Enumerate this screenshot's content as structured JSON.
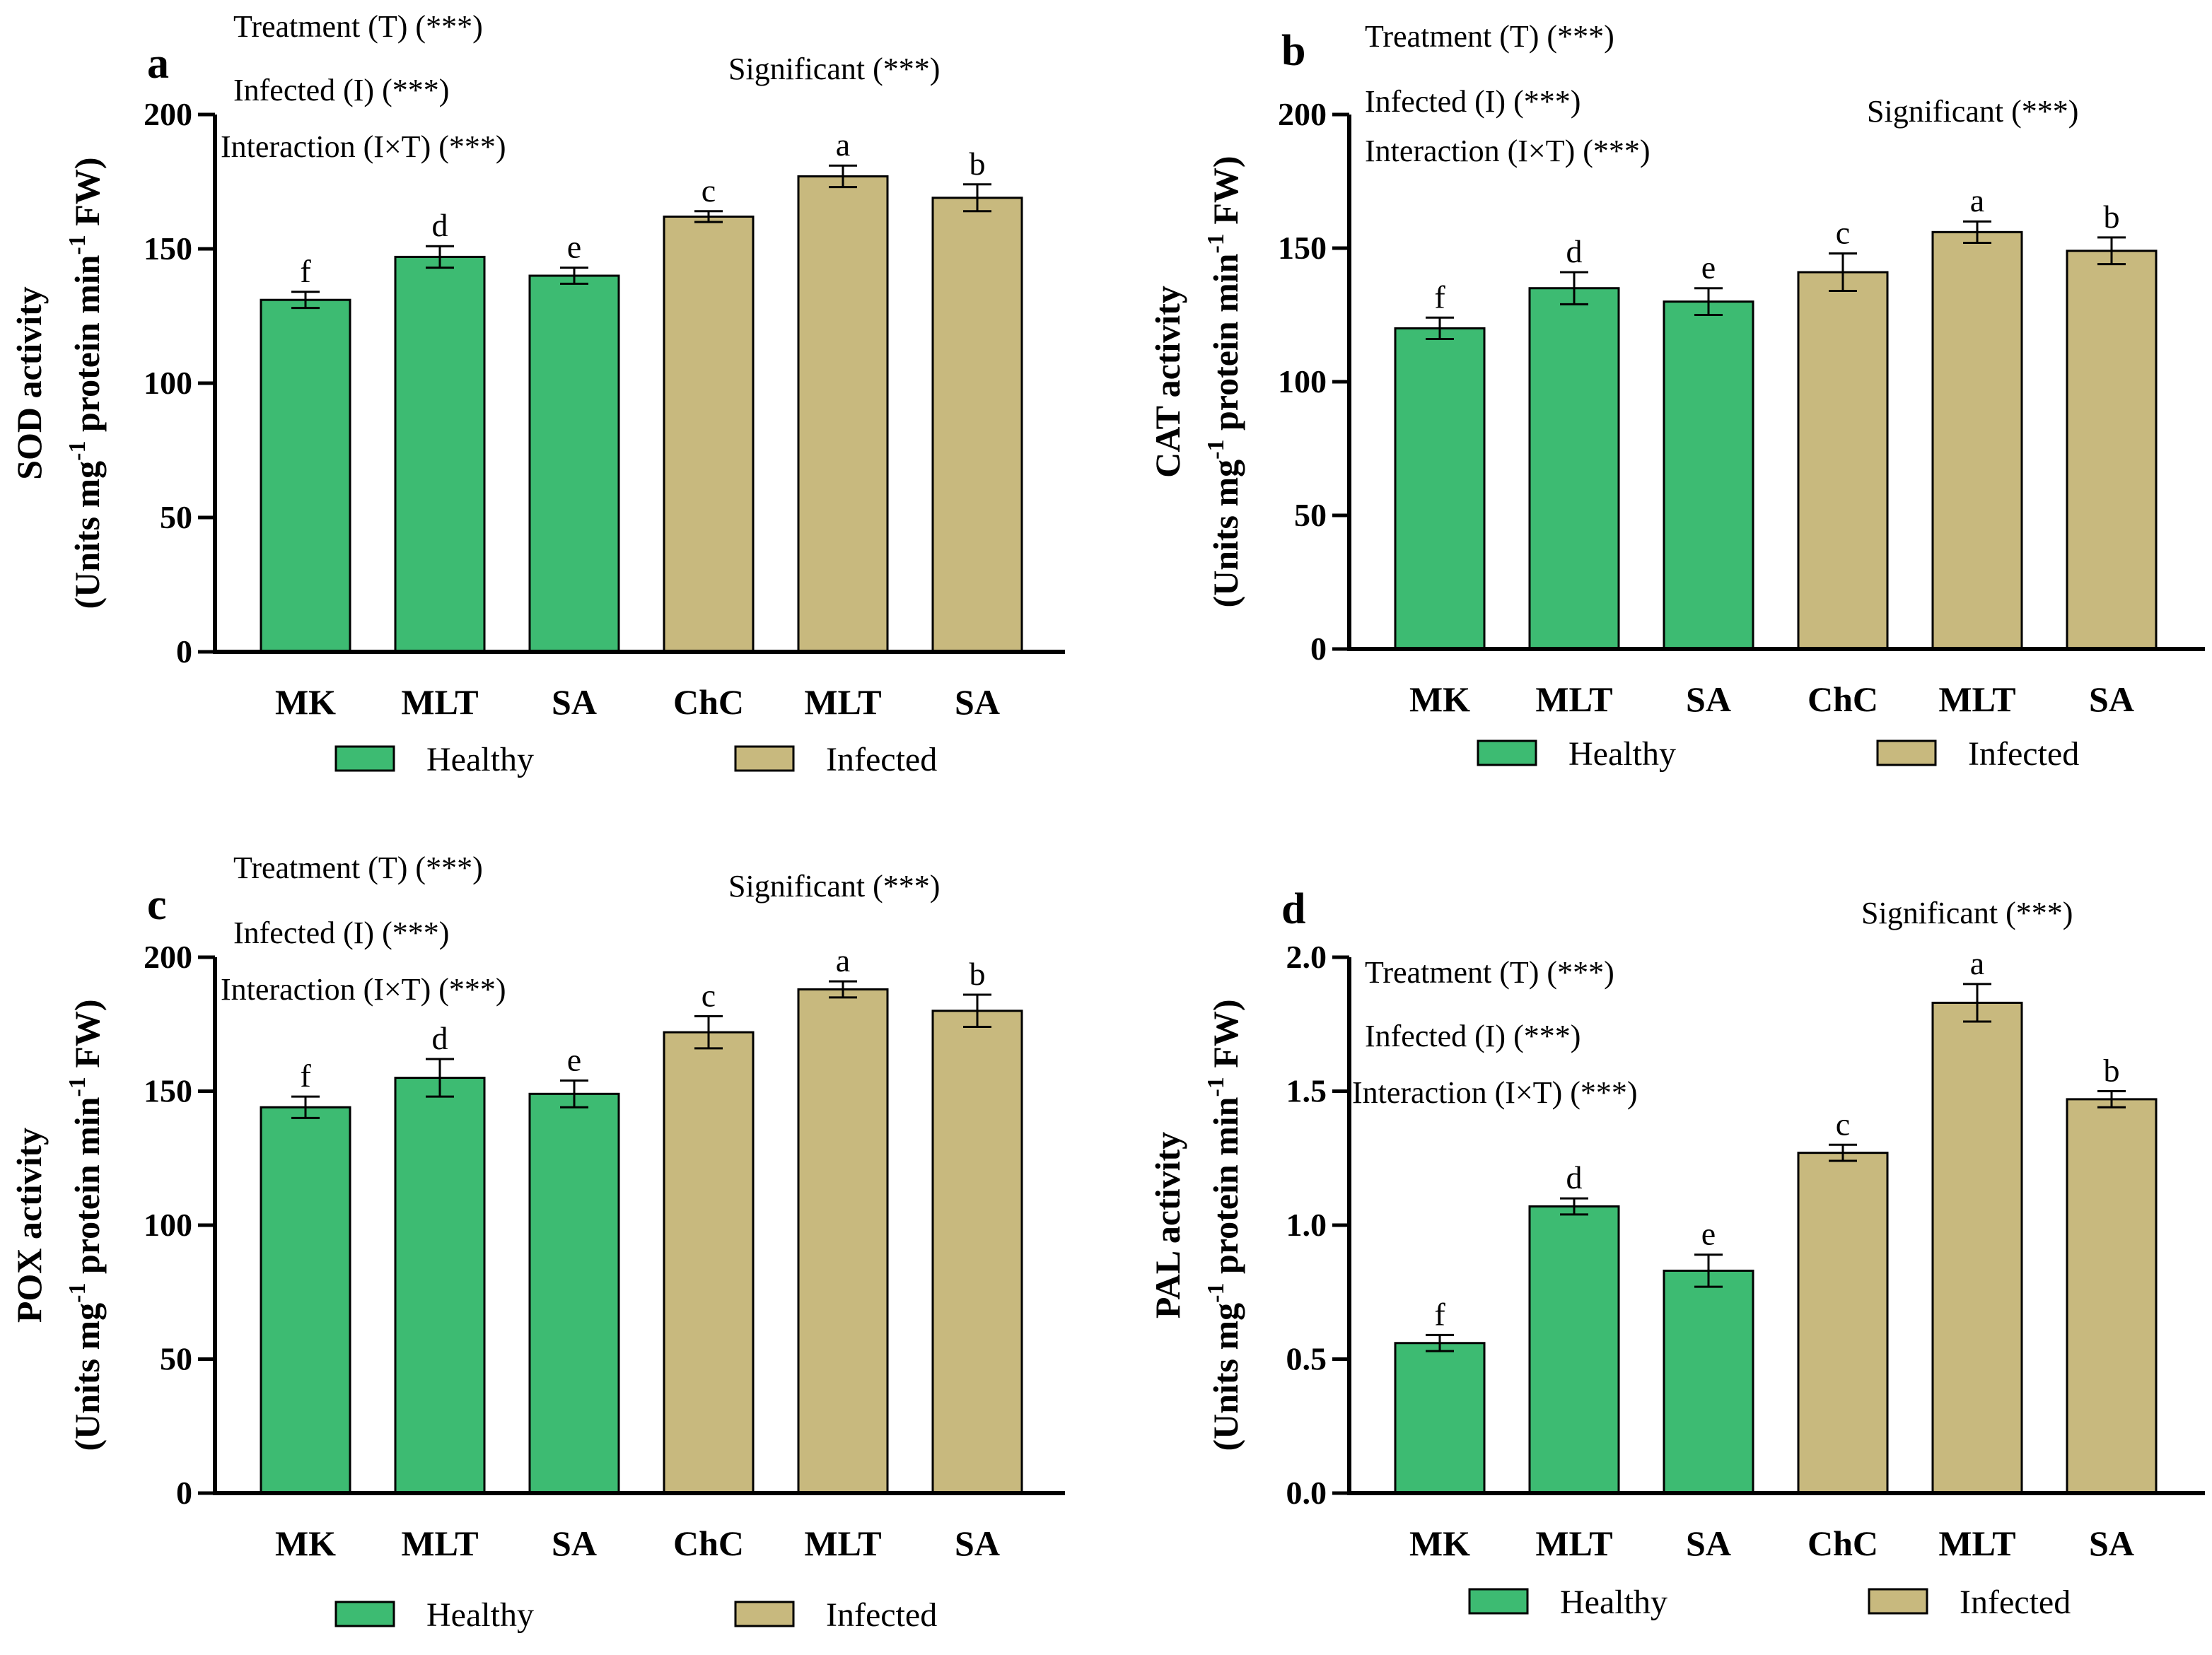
{
  "colors": {
    "healthy": "#3DBB72",
    "infected": "#C8B97E",
    "axis": "#000000"
  },
  "chart_data": [
    {
      "panel": "a",
      "type": "bar",
      "ylabel_line1": "SOD activity",
      "ylabel_line2_pre": "(Units mg",
      "ylabel_line2_sup1": "-1",
      "ylabel_line2_mid": " protein min",
      "ylabel_line2_sup2": "-1",
      "ylabel_line2_post": " FW)",
      "ylim": [
        0,
        200
      ],
      "yticks": [
        0,
        50,
        100,
        150,
        200
      ],
      "ytick_labels": [
        "0",
        "50",
        "100",
        "150",
        "200"
      ],
      "categories": [
        "MK",
        "MLT",
        "SA",
        "ChC",
        "MLT",
        "SA"
      ],
      "groups": [
        "healthy",
        "healthy",
        "healthy",
        "infected",
        "infected",
        "infected"
      ],
      "values": [
        131,
        147,
        140,
        162,
        177,
        169
      ],
      "errors": [
        3,
        4,
        3,
        2,
        4,
        5
      ],
      "letters": [
        "f",
        "d",
        "e",
        "c",
        "a",
        "b"
      ],
      "annotations": [
        "Treatment (T) (***)",
        "Infected (I) (***)",
        "Interaction (I×T) (***)"
      ],
      "significance": "Significant (***)",
      "legend": [
        "Healthy",
        "Infected"
      ]
    },
    {
      "panel": "b",
      "type": "bar",
      "ylabel_line1": "CAT activity",
      "ylabel_line2_pre": "(Units mg",
      "ylabel_line2_sup1": "-1",
      "ylabel_line2_mid": " protein min",
      "ylabel_line2_sup2": "-1",
      "ylabel_line2_post": " FW)",
      "ylim": [
        0,
        200
      ],
      "yticks": [
        0,
        50,
        100,
        150,
        200
      ],
      "ytick_labels": [
        "0",
        "50",
        "100",
        "150",
        "200"
      ],
      "categories": [
        "MK",
        "MLT",
        "SA",
        "ChC",
        "MLT",
        "SA"
      ],
      "groups": [
        "healthy",
        "healthy",
        "healthy",
        "infected",
        "infected",
        "infected"
      ],
      "values": [
        120,
        135,
        130,
        141,
        156,
        149
      ],
      "errors": [
        4,
        6,
        5,
        7,
        4,
        5
      ],
      "letters": [
        "f",
        "d",
        "e",
        "c",
        "a",
        "b"
      ],
      "annotations": [
        "Treatment (T) (***)",
        "Infected (I) (***)",
        "Interaction (I×T) (***)"
      ],
      "significance": "Significant (***)",
      "legend": [
        "Healthy",
        "Infected"
      ]
    },
    {
      "panel": "c",
      "type": "bar",
      "ylabel_line1": "POX activity",
      "ylabel_line2_pre": "(Units mg",
      "ylabel_line2_sup1": "-1",
      "ylabel_line2_mid": " protein min",
      "ylabel_line2_sup2": "-1",
      "ylabel_line2_post": " FW)",
      "ylim": [
        0,
        200
      ],
      "yticks": [
        0,
        50,
        100,
        150,
        200
      ],
      "ytick_labels": [
        "0",
        "50",
        "100",
        "150",
        "200"
      ],
      "categories": [
        "MK",
        "MLT",
        "SA",
        "ChC",
        "MLT",
        "SA"
      ],
      "groups": [
        "healthy",
        "healthy",
        "healthy",
        "infected",
        "infected",
        "infected"
      ],
      "values": [
        144,
        155,
        149,
        172,
        188,
        180
      ],
      "errors": [
        4,
        7,
        5,
        6,
        3,
        6
      ],
      "letters": [
        "f",
        "d",
        "e",
        "c",
        "a",
        "b"
      ],
      "annotations": [
        "Treatment (T) (***)",
        "Infected (I) (***)",
        "Interaction (I×T) (***)"
      ],
      "significance": "Significant (***)",
      "legend": [
        "Healthy",
        "Infected"
      ]
    },
    {
      "panel": "d",
      "type": "bar",
      "ylabel_line1": "PAL activity",
      "ylabel_line2_pre": "(Units mg",
      "ylabel_line2_sup1": "-1",
      "ylabel_line2_mid": " protein min",
      "ylabel_line2_sup2": "-1",
      "ylabel_line2_post": " FW)",
      "ylim": [
        0,
        2.0
      ],
      "yticks": [
        0,
        0.5,
        1.0,
        1.5,
        2.0
      ],
      "ytick_labels": [
        "0.0",
        "0.5",
        "1.0",
        "1.5",
        "2.0"
      ],
      "categories": [
        "MK",
        "MLT",
        "SA",
        "ChC",
        "MLT",
        "SA"
      ],
      "groups": [
        "healthy",
        "healthy",
        "healthy",
        "infected",
        "infected",
        "infected"
      ],
      "values": [
        0.56,
        1.07,
        0.83,
        1.27,
        1.83,
        1.47
      ],
      "errors": [
        0.03,
        0.03,
        0.06,
        0.03,
        0.07,
        0.03
      ],
      "letters": [
        "f",
        "d",
        "e",
        "c",
        "a",
        "b"
      ],
      "annotations": [
        "Treatment (T) (***)",
        "Infected (I) (***)",
        "Interaction (I×T) (***)"
      ],
      "significance": "Significant (***)",
      "legend": [
        "Healthy",
        "Infected"
      ]
    }
  ]
}
